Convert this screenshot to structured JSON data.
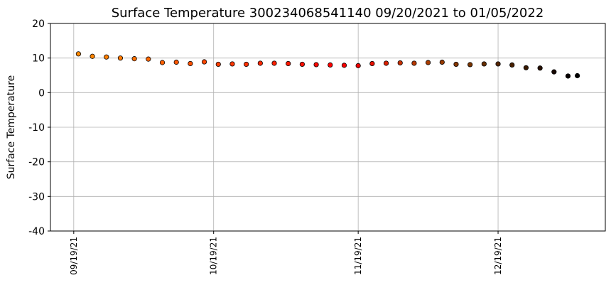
{
  "chart_data": {
    "type": "scatter",
    "title": "Surface Temperature 300234068541140  09/20/2021 to 01/05/2022",
    "y_label": "Surface Temperature",
    "x": [
      "2021-09-20",
      "2021-09-23",
      "2021-09-26",
      "2021-09-29",
      "2021-10-02",
      "2021-10-05",
      "2021-10-08",
      "2021-10-11",
      "2021-10-14",
      "2021-10-17",
      "2021-10-20",
      "2021-10-23",
      "2021-10-26",
      "2021-10-29",
      "2021-11-01",
      "2021-11-04",
      "2021-11-07",
      "2021-11-10",
      "2021-11-13",
      "2021-11-16",
      "2021-11-19",
      "2021-11-22",
      "2021-11-25",
      "2021-11-28",
      "2021-12-01",
      "2021-12-04",
      "2021-12-07",
      "2021-12-10",
      "2021-12-13",
      "2021-12-16",
      "2021-12-19",
      "2021-12-22",
      "2021-12-25",
      "2021-12-28",
      "2021-12-31",
      "2022-01-03",
      "2022-01-05"
    ],
    "values": [
      11.2,
      10.5,
      10.3,
      10.0,
      9.8,
      9.7,
      8.7,
      8.8,
      8.4,
      8.9,
      8.2,
      8.3,
      8.2,
      8.5,
      8.5,
      8.4,
      8.2,
      8.1,
      8.0,
      7.9,
      7.8,
      8.4,
      8.5,
      8.6,
      8.5,
      8.7,
      8.8,
      8.2,
      8.1,
      8.3,
      8.3,
      8.0,
      7.2,
      7.1,
      6.0,
      4.8,
      4.9
    ],
    "colors": [
      "#ff8a00",
      "#ff8400",
      "#ff7e00",
      "#ff7800",
      "#ff7000",
      "#ff6800",
      "#ff6000",
      "#ff5800",
      "#ff5000",
      "#ff4800",
      "#ff4000",
      "#ff3800",
      "#ff3000",
      "#ff2800",
      "#ff2000",
      "#ff1800",
      "#ff1000",
      "#ff0800",
      "#ff0000",
      "#f80000",
      "#f00000",
      "#e81000",
      "#d82000",
      "#c83000",
      "#b83800",
      "#a83c00",
      "#983c00",
      "#883800",
      "#783400",
      "#683000",
      "#582800",
      "#482000",
      "#381800",
      "#281000",
      "#180800",
      "#080000",
      "#000000"
    ],
    "xlim": [
      "2021-09-14",
      "2022-01-11"
    ],
    "xticks": [
      {
        "value": "2021-09-19",
        "label": "09/19/21"
      },
      {
        "value": "2021-10-19",
        "label": "10/19/21"
      },
      {
        "value": "2021-11-19",
        "label": "11/19/21"
      },
      {
        "value": "2021-12-19",
        "label": "12/19/21"
      }
    ],
    "ylim": [
      -40,
      20
    ],
    "yticks": [
      -40,
      -30,
      -20,
      -10,
      0,
      10,
      20
    ],
    "grid": true
  }
}
